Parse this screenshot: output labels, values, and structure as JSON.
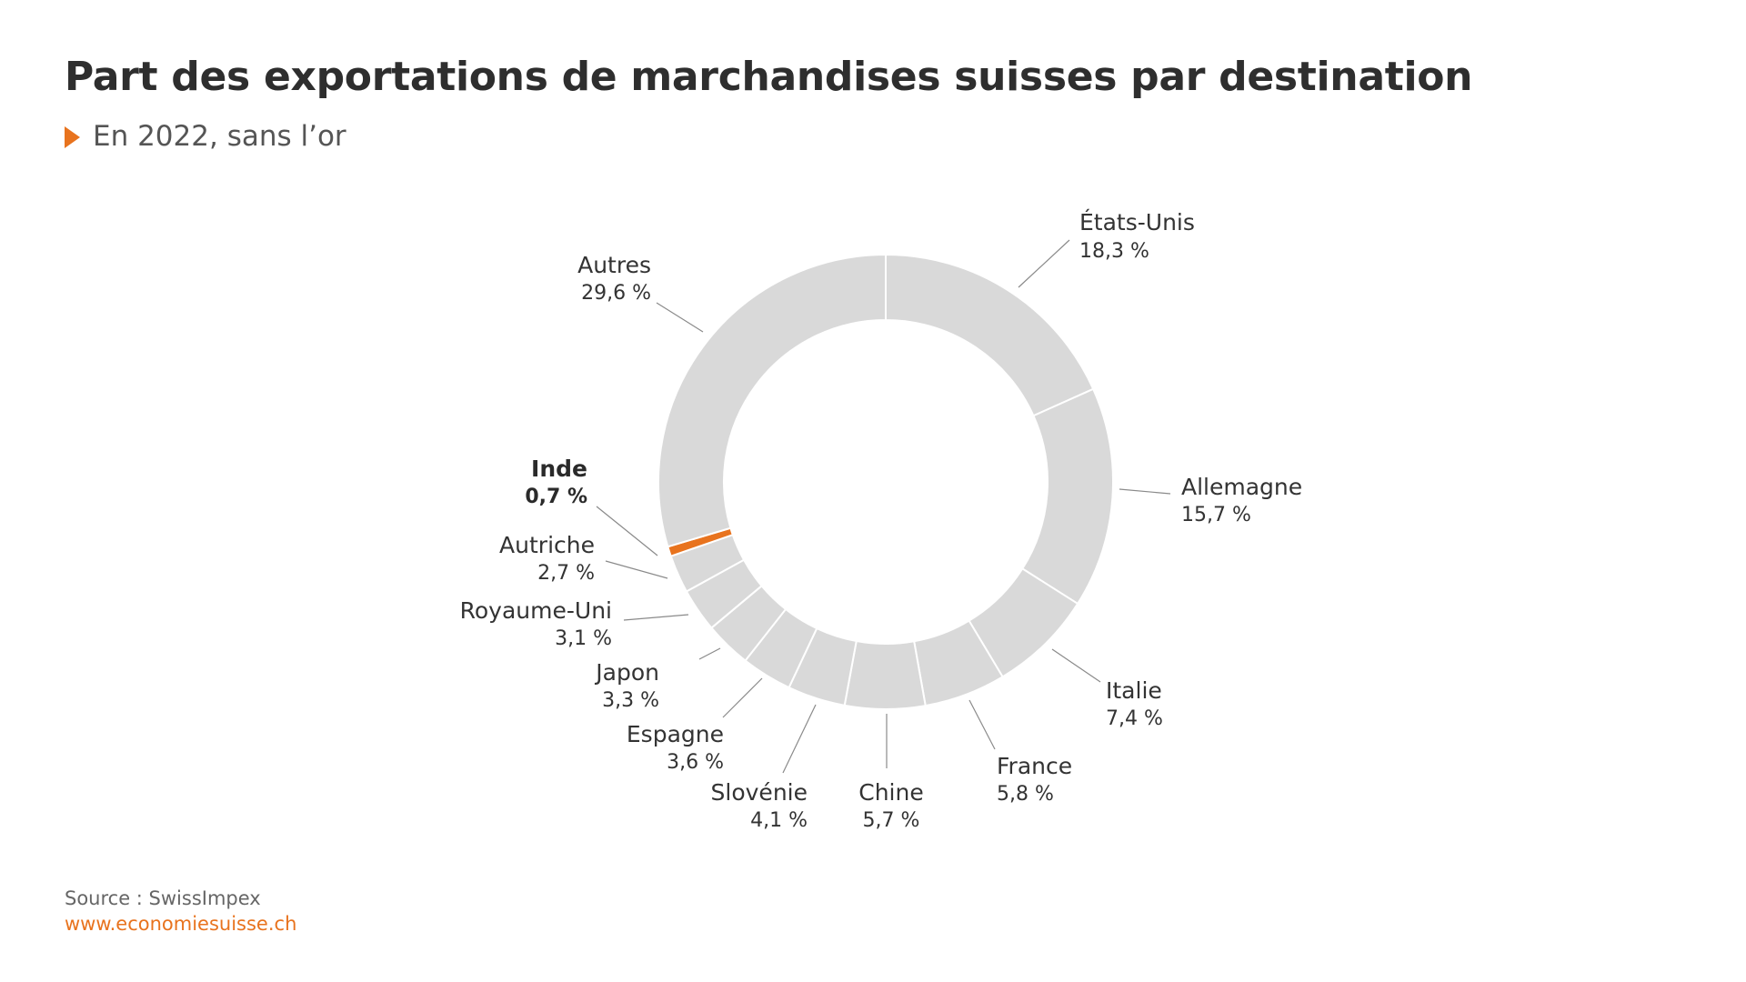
{
  "header": {
    "title": "Part des exportations de marchandises suisses par destination",
    "subtitle": "En 2022, sans l’or"
  },
  "chart_data": {
    "type": "pie",
    "variant": "donut",
    "title": "Part des exportations de marchandises suisses par destination",
    "subtitle": "En 2022, sans l’or",
    "unit": "%",
    "start": "12 o'clock, clockwise",
    "colors": {
      "default": "#d9d9d9",
      "highlight": "#e8731e"
    },
    "slices": [
      {
        "label": "États-Unis",
        "value": 18.3,
        "value_label": "18,3 %",
        "highlight": false
      },
      {
        "label": "Allemagne",
        "value": 15.7,
        "value_label": "15,7 %",
        "highlight": false
      },
      {
        "label": "Italie",
        "value": 7.4,
        "value_label": "7,4 %",
        "highlight": false
      },
      {
        "label": "France",
        "value": 5.8,
        "value_label": "5,8 %",
        "highlight": false
      },
      {
        "label": "Chine",
        "value": 5.7,
        "value_label": "5,7 %",
        "highlight": false
      },
      {
        "label": "Slovénie",
        "value": 4.1,
        "value_label": "4,1 %",
        "highlight": false
      },
      {
        "label": "Espagne",
        "value": 3.6,
        "value_label": "3,6 %",
        "highlight": false
      },
      {
        "label": "Japon",
        "value": 3.3,
        "value_label": "3,3 %",
        "highlight": false
      },
      {
        "label": "Royaume-Uni",
        "value": 3.1,
        "value_label": "3,1 %",
        "highlight": false
      },
      {
        "label": "Autriche",
        "value": 2.7,
        "value_label": "2,7 %",
        "highlight": false
      },
      {
        "label": "Inde",
        "value": 0.7,
        "value_label": "0,7 %",
        "highlight": true
      },
      {
        "label": "Autres",
        "value": 29.6,
        "value_label": "29,6 %",
        "highlight": false
      }
    ]
  },
  "footer": {
    "source": "Source : SwissImpex",
    "url": "www.economiesuisse.ch"
  }
}
